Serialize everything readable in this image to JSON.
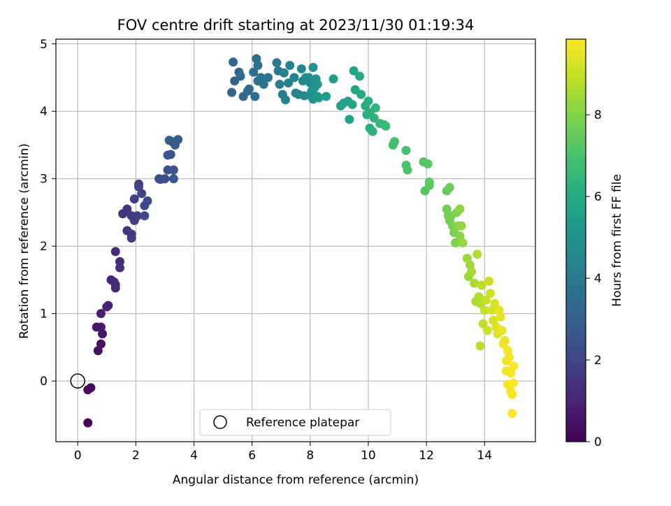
{
  "chart_data": {
    "type": "scatter",
    "title": "FOV centre drift starting at 2023/11/30 01:19:34",
    "xlabel": "Angular distance from reference (arcmin)",
    "ylabel": "Rotation from reference (arcmin)",
    "xlim": [
      -0.75,
      15.75
    ],
    "ylim": [
      -0.9,
      5.07
    ],
    "xticks": [
      0,
      2,
      4,
      6,
      8,
      10,
      12,
      14
    ],
    "yticks": [
      0,
      1,
      2,
      3,
      4,
      5
    ],
    "grid": true,
    "colormap": "viridis",
    "colorbar": {
      "label": "Hours from first FF file",
      "range": [
        0,
        9.85
      ],
      "ticks": [
        0,
        2,
        4,
        6,
        8
      ]
    },
    "legend": {
      "position": "lower-center",
      "entries": [
        "Reference platepar"
      ]
    },
    "reference_point": {
      "x": 0,
      "y": 0,
      "label": "Reference platepar"
    },
    "series": [
      {
        "color_value": "hours",
        "points": [
          [
            0.35,
            -0.62,
            0.15
          ],
          [
            0.35,
            -0.13,
            0.25
          ],
          [
            0.45,
            -0.1,
            0.3
          ],
          [
            0.7,
            0.45,
            0.45
          ],
          [
            0.8,
            0.55,
            0.55
          ],
          [
            0.85,
            0.7,
            0.6
          ],
          [
            0.65,
            0.8,
            0.65
          ],
          [
            0.8,
            0.8,
            0.7
          ],
          [
            0.8,
            1.0,
            0.8
          ],
          [
            1.0,
            1.1,
            0.9
          ],
          [
            1.05,
            1.12,
            0.95
          ],
          [
            1.15,
            1.5,
            1.05
          ],
          [
            1.25,
            1.47,
            1.1
          ],
          [
            1.3,
            1.38,
            1.15
          ],
          [
            1.3,
            1.43,
            1.2
          ],
          [
            1.3,
            1.92,
            1.25
          ],
          [
            1.45,
            1.77,
            1.3
          ],
          [
            1.45,
            1.68,
            1.35
          ],
          [
            1.55,
            2.48,
            1.45
          ],
          [
            1.7,
            2.23,
            1.5
          ],
          [
            1.7,
            2.55,
            1.55
          ],
          [
            1.85,
            2.12,
            1.6
          ],
          [
            1.85,
            2.18,
            1.65
          ],
          [
            1.85,
            2.45,
            1.7
          ],
          [
            1.95,
            2.38,
            1.75
          ],
          [
            1.95,
            2.7,
            1.8
          ],
          [
            2.05,
            2.45,
            1.85
          ],
          [
            2.1,
            2.92,
            1.9
          ],
          [
            2.1,
            2.88,
            1.95
          ],
          [
            2.2,
            2.78,
            2.0
          ],
          [
            2.3,
            2.45,
            2.05
          ],
          [
            2.3,
            2.6,
            2.1
          ],
          [
            2.4,
            2.67,
            2.15
          ],
          [
            2.8,
            3.0,
            2.3
          ],
          [
            2.85,
            2.99,
            2.35
          ],
          [
            3.0,
            3.0,
            2.4
          ],
          [
            3.1,
            3.13,
            2.45
          ],
          [
            3.1,
            3.35,
            2.5
          ],
          [
            3.2,
            3.36,
            2.55
          ],
          [
            3.25,
            3.55,
            2.6
          ],
          [
            3.3,
            3.13,
            2.65
          ],
          [
            3.3,
            3.0,
            2.7
          ],
          [
            3.35,
            3.5,
            2.75
          ],
          [
            3.45,
            3.58,
            2.8
          ],
          [
            3.15,
            3.57,
            2.85
          ],
          [
            5.3,
            4.28,
            3.1
          ],
          [
            5.4,
            4.45,
            3.15
          ],
          [
            5.35,
            4.73,
            3.2
          ],
          [
            5.55,
            4.58,
            3.25
          ],
          [
            5.6,
            4.52,
            3.3
          ],
          [
            5.7,
            4.22,
            3.35
          ],
          [
            5.85,
            4.3,
            3.4
          ],
          [
            5.9,
            4.33,
            3.45
          ],
          [
            6.05,
            4.58,
            3.5
          ],
          [
            6.1,
            4.22,
            3.55
          ],
          [
            6.15,
            4.78,
            3.6
          ],
          [
            6.2,
            4.68,
            3.65
          ],
          [
            6.2,
            4.45,
            3.7
          ],
          [
            6.3,
            4.5,
            3.75
          ],
          [
            6.4,
            4.4,
            3.8
          ],
          [
            6.55,
            4.5,
            3.85
          ],
          [
            6.85,
            4.72,
            3.95
          ],
          [
            6.9,
            4.6,
            4.0
          ],
          [
            6.95,
            4.4,
            4.05
          ],
          [
            7.05,
            4.25,
            4.1
          ],
          [
            7.1,
            4.57,
            4.15
          ],
          [
            7.15,
            4.17,
            4.2
          ],
          [
            7.25,
            4.42,
            4.25
          ],
          [
            7.3,
            4.68,
            4.3
          ],
          [
            7.45,
            4.5,
            4.35
          ],
          [
            7.5,
            4.27,
            4.4
          ],
          [
            7.6,
            4.25,
            4.45
          ],
          [
            7.7,
            4.63,
            4.5
          ],
          [
            7.75,
            4.45,
            4.55
          ],
          [
            7.8,
            4.23,
            4.65
          ],
          [
            7.85,
            4.5,
            4.7
          ],
          [
            7.95,
            4.5,
            4.75
          ],
          [
            8.0,
            4.42,
            4.8
          ],
          [
            8.05,
            4.3,
            4.85
          ],
          [
            8.05,
            4.22,
            4.9
          ],
          [
            8.1,
            4.65,
            4.95
          ],
          [
            8.1,
            4.18,
            5.0
          ],
          [
            8.15,
            4.35,
            5.05
          ],
          [
            8.2,
            4.48,
            5.1
          ],
          [
            8.25,
            4.22,
            5.15
          ],
          [
            8.25,
            4.4,
            5.2
          ],
          [
            8.3,
            4.2,
            5.25
          ],
          [
            8.55,
            4.22,
            5.4
          ],
          [
            8.8,
            4.48,
            5.45
          ],
          [
            9.05,
            4.08,
            5.55
          ],
          [
            9.15,
            4.12,
            5.6
          ],
          [
            9.3,
            4.15,
            5.65
          ],
          [
            9.35,
            3.88,
            5.7
          ],
          [
            9.45,
            4.1,
            5.75
          ],
          [
            9.5,
            4.6,
            5.8
          ],
          [
            9.55,
            4.32,
            5.85
          ],
          [
            9.7,
            4.52,
            5.9
          ],
          [
            9.75,
            4.25,
            5.95
          ],
          [
            9.9,
            4.08,
            6.05
          ],
          [
            9.95,
            3.95,
            6.1
          ],
          [
            10.0,
            4.15,
            6.15
          ],
          [
            10.05,
            3.75,
            6.2
          ],
          [
            10.05,
            3.98,
            6.25
          ],
          [
            10.15,
            3.7,
            6.3
          ],
          [
            10.2,
            3.9,
            6.35
          ],
          [
            10.25,
            4.05,
            6.4
          ],
          [
            10.4,
            3.82,
            6.5
          ],
          [
            10.55,
            3.8,
            6.6
          ],
          [
            10.6,
            3.78,
            6.65
          ],
          [
            10.85,
            3.5,
            6.8
          ],
          [
            10.9,
            3.55,
            6.85
          ],
          [
            11.3,
            3.42,
            6.95
          ],
          [
            11.3,
            3.2,
            7.0
          ],
          [
            11.35,
            3.13,
            7.05
          ],
          [
            11.9,
            3.25,
            7.2
          ],
          [
            11.95,
            2.82,
            7.25
          ],
          [
            12.05,
            3.22,
            7.3
          ],
          [
            12.1,
            2.95,
            7.35
          ],
          [
            12.1,
            2.9,
            7.4
          ],
          [
            12.7,
            2.82,
            7.55
          ],
          [
            12.8,
            2.87,
            7.6
          ],
          [
            12.7,
            2.55,
            7.65
          ],
          [
            12.75,
            2.45,
            7.7
          ],
          [
            12.8,
            2.38,
            7.75
          ],
          [
            12.85,
            2.45,
            7.8
          ],
          [
            12.9,
            2.3,
            7.85
          ],
          [
            12.95,
            2.2,
            7.9
          ],
          [
            13.0,
            2.05,
            7.95
          ],
          [
            13.05,
            2.5,
            8.0
          ],
          [
            13.1,
            2.3,
            8.05
          ],
          [
            13.15,
            2.15,
            8.1
          ],
          [
            13.15,
            2.55,
            8.15
          ],
          [
            13.2,
            2.3,
            8.2
          ],
          [
            13.25,
            2.05,
            8.25
          ],
          [
            13.4,
            1.82,
            8.35
          ],
          [
            13.45,
            1.55,
            8.4
          ],
          [
            13.5,
            1.72,
            8.45
          ],
          [
            13.55,
            1.62,
            8.5
          ],
          [
            13.65,
            1.45,
            8.55
          ],
          [
            13.7,
            1.18,
            8.6
          ],
          [
            13.75,
            1.88,
            8.65
          ],
          [
            13.8,
            1.25,
            8.7
          ],
          [
            13.85,
            1.15,
            8.75
          ],
          [
            13.85,
            0.52,
            8.8
          ],
          [
            13.9,
            1.42,
            8.85
          ],
          [
            13.95,
            0.85,
            8.9
          ],
          [
            14.0,
            1.05,
            8.95
          ],
          [
            14.05,
            1.2,
            9.0
          ],
          [
            14.1,
            0.75,
            9.05
          ],
          [
            14.15,
            1.48,
            9.1
          ],
          [
            14.2,
            1.3,
            9.15
          ],
          [
            14.25,
            1.05,
            9.2
          ],
          [
            14.3,
            0.9,
            9.25
          ],
          [
            14.35,
            1.15,
            9.3
          ],
          [
            14.4,
            0.8,
            9.35
          ],
          [
            14.45,
            0.7,
            9.4
          ],
          [
            14.5,
            1.05,
            9.45
          ],
          [
            14.55,
            0.95,
            9.5
          ],
          [
            14.6,
            0.75,
            9.55
          ],
          [
            14.65,
            0.55,
            9.6
          ],
          [
            14.7,
            0.6,
            9.62
          ],
          [
            14.75,
            0.3,
            9.64
          ],
          [
            14.75,
            0.15,
            9.66
          ],
          [
            14.8,
            0.45,
            9.68
          ],
          [
            14.8,
            -0.05,
            9.7
          ],
          [
            14.85,
            0.35,
            9.72
          ],
          [
            14.9,
            0.12,
            9.74
          ],
          [
            14.9,
            -0.15,
            9.76
          ],
          [
            14.95,
            -0.2,
            9.78
          ],
          [
            14.95,
            -0.48,
            9.8
          ],
          [
            15.0,
            0.22,
            9.82
          ],
          [
            15.0,
            -0.03,
            9.84
          ]
        ]
      }
    ]
  }
}
